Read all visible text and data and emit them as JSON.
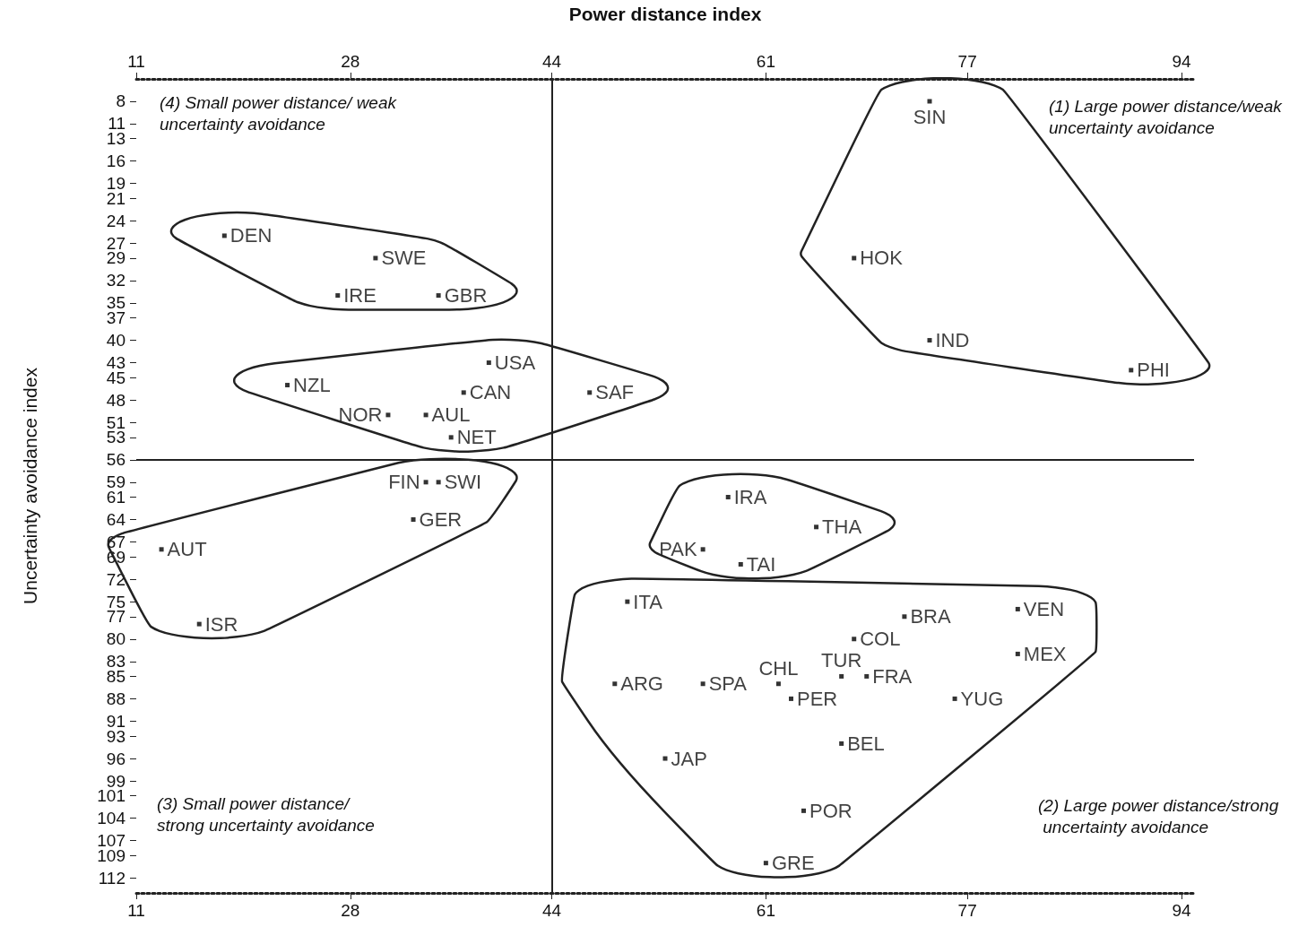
{
  "chart_data": {
    "type": "scatter",
    "ylabel": "Uncertainty avoidance index",
    "x2label": "Power distance index",
    "xlim": [
      11,
      95
    ],
    "xticks": [
      11,
      28,
      44,
      61,
      77,
      94
    ],
    "x2lim": [
      11,
      95
    ],
    "x2ticks": [
      11,
      28,
      44,
      61,
      77,
      94
    ],
    "ylim": [
      114,
      5
    ],
    "yticks": [
      8,
      11,
      13,
      16,
      19,
      21,
      24,
      27,
      29,
      32,
      35,
      37,
      40,
      43,
      45,
      48,
      51,
      53,
      56,
      59,
      61,
      64,
      67,
      69,
      72,
      75,
      77,
      80,
      83,
      85,
      88,
      91,
      93,
      96,
      99,
      101,
      104,
      107,
      109,
      112
    ],
    "marker": "square",
    "series": [
      {
        "color": "#000000",
        "x": [
          74,
          68,
          74,
          90
        ],
        "values": [
          8,
          29,
          40,
          44
        ],
        "value_labels": [
          "SIN",
          "HOK",
          "IND",
          "PHI"
        ]
      },
      {
        "color": "#000000",
        "x": [
          18,
          30,
          27,
          35
        ],
        "values": [
          26,
          29,
          34,
          34
        ],
        "value_labels": [
          "DEN",
          "SWE",
          "IRE",
          "GBR"
        ]
      },
      {
        "color": "#000000",
        "x": [
          23,
          39,
          37,
          47,
          31,
          34,
          36
        ],
        "values": [
          46,
          43,
          47,
          47,
          50,
          50,
          53
        ],
        "value_labels": [
          "NZL",
          "USA",
          "CAN",
          "SAF",
          "NOR",
          "AUL",
          "NET"
        ]
      },
      {
        "color": "#000000",
        "x": [
          34,
          35,
          33,
          13,
          16
        ],
        "values": [
          59,
          59,
          64,
          68,
          78
        ],
        "value_labels": [
          "FIN",
          "SWI",
          "GER",
          "AUT",
          "ISR"
        ]
      },
      {
        "color": "#000000",
        "x": [
          58,
          65,
          56,
          59
        ],
        "values": [
          61,
          65,
          68,
          70
        ],
        "value_labels": [
          "IRA",
          "THA",
          "PAK",
          "TAI"
        ]
      },
      {
        "color": "#000000",
        "x": [
          50,
          72,
          68,
          81,
          81,
          49,
          56,
          62,
          67,
          69,
          76,
          63,
          53,
          67,
          64,
          61
        ],
        "values": [
          75,
          77,
          80,
          76,
          82,
          86,
          86,
          86,
          85,
          85,
          88,
          88,
          96,
          94,
          103,
          110
        ],
        "value_labels": [
          "ITA",
          "BRA",
          "COL",
          "VEN",
          "MEX",
          "ARG",
          "SPA",
          "CHL",
          "TUR",
          "FRA",
          "YUG",
          "PER",
          "JAP",
          "BEL",
          "POR",
          "GRE"
        ]
      }
    ],
    "ref_lines": [
      {
        "axis": "x",
        "value": 44
      },
      {
        "axis": "y",
        "value": 56
      }
    ],
    "annotations": [
      "(4) Small power distance/ weak uncertainty avoidance",
      "(1) Large power distance/weak uncertainty avoidance",
      "(3) Small power distance/ strong uncertainty avoidance",
      "(2) Large power distance/strong uncertainty avoidance"
    ]
  }
}
